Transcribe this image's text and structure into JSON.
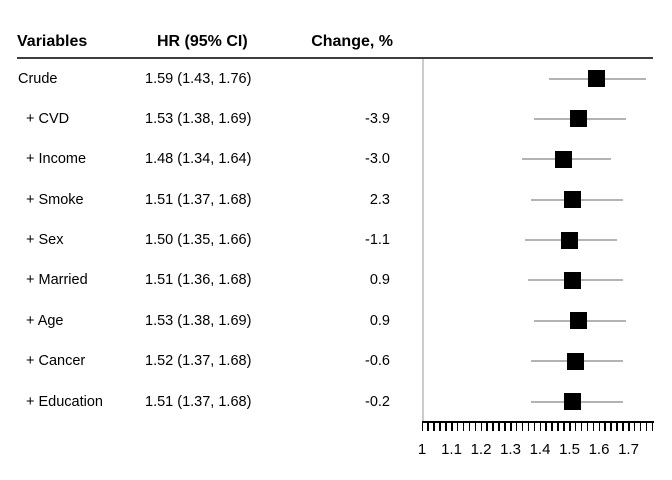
{
  "columns": {
    "variables": "Variables",
    "hr": "HR (95% CI)",
    "change": "Change, %"
  },
  "chart_data": {
    "type": "forest",
    "title": "",
    "rows": [
      {
        "label": "Crude",
        "hr": 1.59,
        "ci_low": 1.43,
        "ci_high": 1.76,
        "hr_text": "1.59 (1.43, 1.76)",
        "change": ""
      },
      {
        "label": "+ CVD",
        "hr": 1.53,
        "ci_low": 1.38,
        "ci_high": 1.69,
        "hr_text": "1.53 (1.38, 1.69)",
        "change": "-3.9"
      },
      {
        "label": "+ Income",
        "hr": 1.48,
        "ci_low": 1.34,
        "ci_high": 1.64,
        "hr_text": "1.48 (1.34, 1.64)",
        "change": "-3.0"
      },
      {
        "label": "+ Smoke",
        "hr": 1.51,
        "ci_low": 1.37,
        "ci_high": 1.68,
        "hr_text": "1.51 (1.37, 1.68)",
        "change": "2.3"
      },
      {
        "label": "+ Sex",
        "hr": 1.5,
        "ci_low": 1.35,
        "ci_high": 1.66,
        "hr_text": "1.50 (1.35, 1.66)",
        "change": "-1.1"
      },
      {
        "label": "+ Married",
        "hr": 1.51,
        "ci_low": 1.36,
        "ci_high": 1.68,
        "hr_text": "1.51 (1.36, 1.68)",
        "change": "0.9"
      },
      {
        "label": "+ Age",
        "hr": 1.53,
        "ci_low": 1.38,
        "ci_high": 1.69,
        "hr_text": "1.53 (1.38, 1.69)",
        "change": "0.9"
      },
      {
        "label": "+ Cancer",
        "hr": 1.52,
        "ci_low": 1.37,
        "ci_high": 1.68,
        "hr_text": "1.52 (1.37, 1.68)",
        "change": "-0.6"
      },
      {
        "label": "+ Education",
        "hr": 1.51,
        "ci_low": 1.37,
        "ci_high": 1.68,
        "hr_text": "1.51 (1.37, 1.68)",
        "change": "-0.2"
      }
    ],
    "x_axis": {
      "min": 1.0,
      "max": 1.78,
      "minor_tick_step": 0.02,
      "tick_labels": [
        "1",
        "1.1",
        "1.2",
        "1.3",
        "1.4",
        "1.5",
        "1.6",
        "1.7"
      ],
      "tick_values": [
        1.0,
        1.1,
        1.2,
        1.3,
        1.4,
        1.5,
        1.6,
        1.7
      ]
    },
    "colors": {
      "marker": "#000000",
      "ci_line": "#b3b3b3",
      "axis": "#000000",
      "reference_line": "#cccccc",
      "header_rule": "#3d3d3d",
      "text": "#000000"
    }
  }
}
